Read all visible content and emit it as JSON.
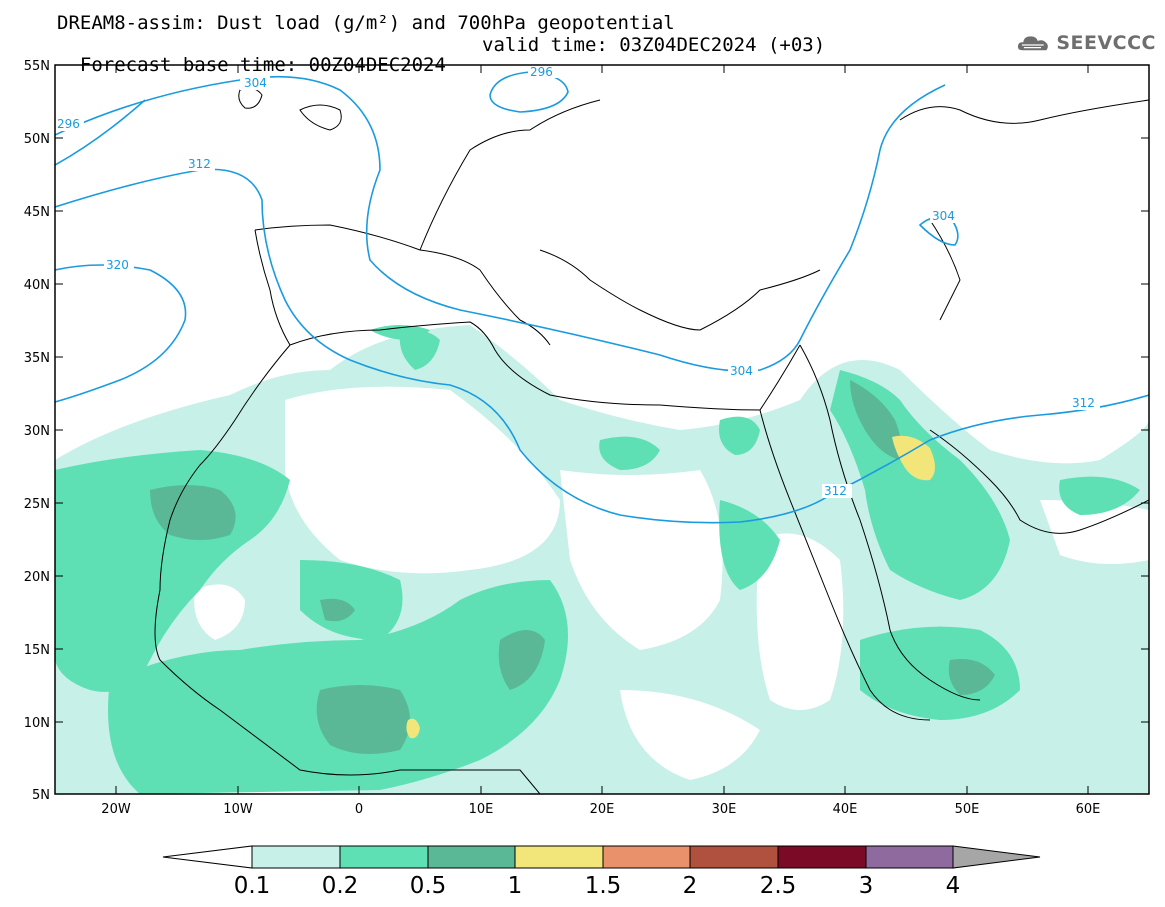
{
  "title": {
    "line1": "DREAM8-assim: Dust load (g/m²) and 700hPa geopotential",
    "line2_base": "Forecast base time: 00Z04DEC2024",
    "line2_valid": "valid time: 03Z04DEC2024 (+03)"
  },
  "logo": {
    "text": "SEEVCCC",
    "icon": "cloud-icon"
  },
  "axes": {
    "lat_labels": [
      "55N",
      "50N",
      "45N",
      "40N",
      "35N",
      "30N",
      "25N",
      "20N",
      "15N",
      "10N",
      "5N"
    ],
    "lon_labels": [
      "20W",
      "10W",
      "0",
      "10E",
      "20E",
      "30E",
      "40E",
      "50E",
      "60E"
    ]
  },
  "contour_labels": [
    "304",
    "296",
    "296",
    "312",
    "320",
    "304",
    "304",
    "312",
    "312"
  ],
  "colorbar": {
    "labels": [
      "0.1",
      "0.2",
      "0.5",
      "1",
      "1.5",
      "2",
      "2.5",
      "3",
      "4"
    ],
    "colors": [
      "#c6f0e8",
      "#5ee0b4",
      "#5ab896",
      "#f2e57a",
      "#e8916a",
      "#b0503e",
      "#7a0a25",
      "#8e6a9e",
      "#a6a6a6"
    ]
  },
  "colors": {
    "geopotential_contour": "#1a9be0",
    "land_outline": "#000000"
  }
}
